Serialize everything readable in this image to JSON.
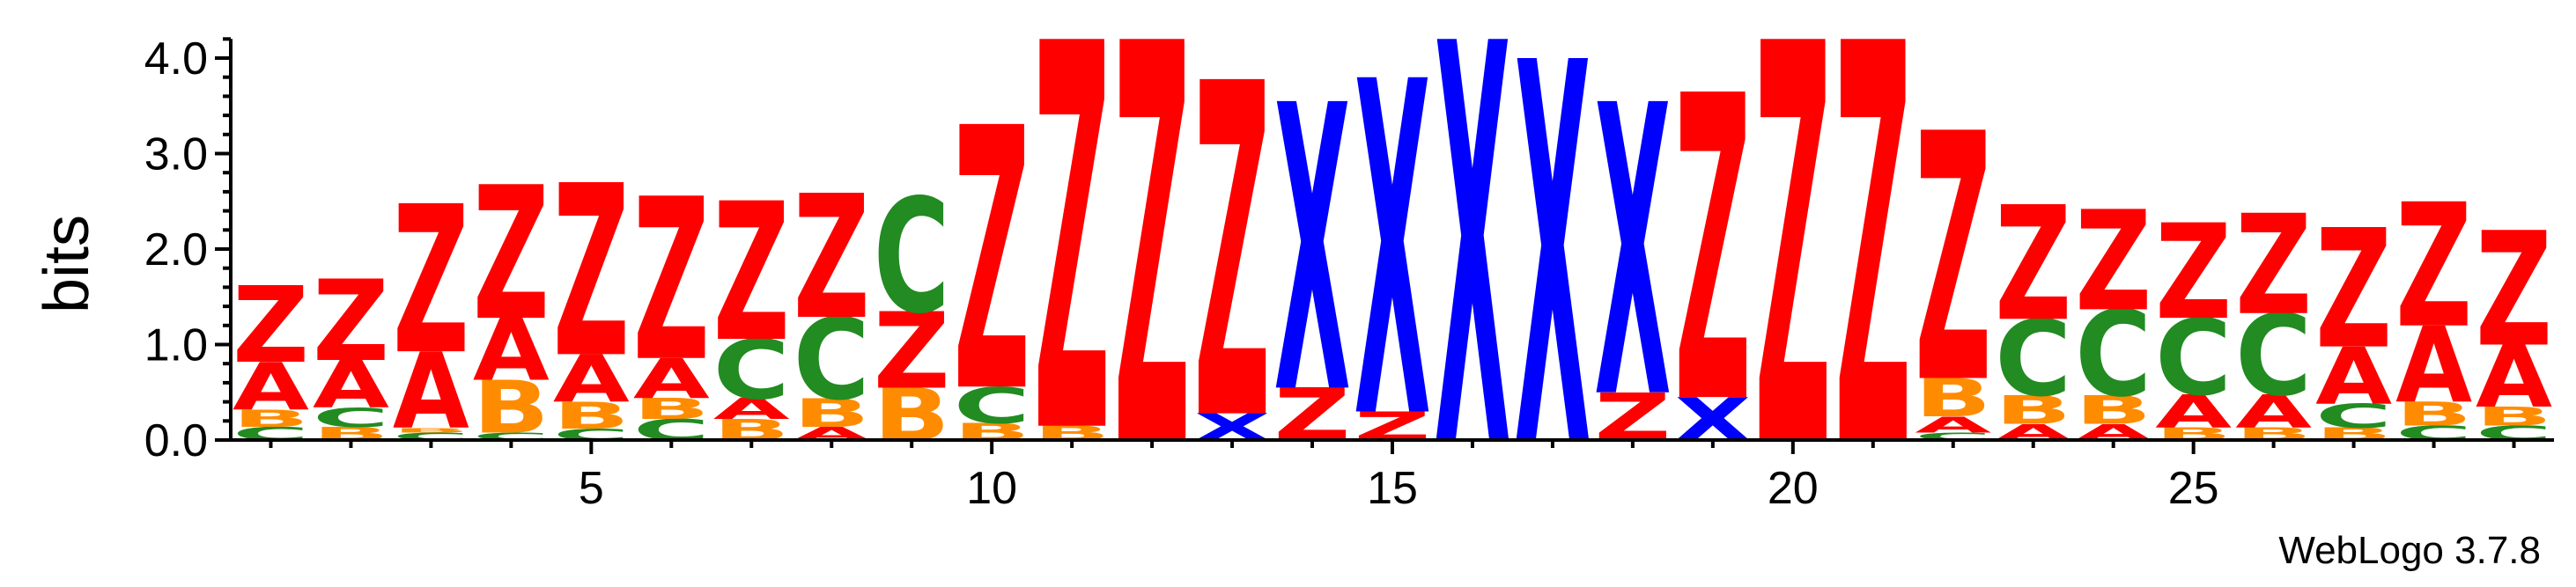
{
  "chart_data": {
    "type": "sequence-logo",
    "ylabel": "bits",
    "ylim": [
      0,
      4.2
    ],
    "yticks": [
      0.0,
      1.0,
      2.0,
      3.0,
      4.0
    ],
    "ytick_labels": [
      "0.0",
      "1.0",
      "2.0",
      "3.0",
      "4.0"
    ],
    "xlim": [
      0.5,
      29.5
    ],
    "xticks": [
      5,
      10,
      15,
      20,
      25
    ],
    "xtick_labels": [
      "5",
      "10",
      "15",
      "20",
      "25"
    ],
    "footer": "WebLogo 3.7.8",
    "colors": {
      "Z": "#ff0000",
      "X": "#0000ff",
      "A": "#ff0000",
      "B": "#ff8c00",
      "C": "#228b22"
    },
    "positions": [
      {
        "pos": 1,
        "stack": [
          [
            "C",
            0.14
          ],
          [
            "B",
            0.18
          ],
          [
            "A",
            0.5
          ],
          [
            "Z",
            0.8
          ]
        ]
      },
      {
        "pos": 2,
        "stack": [
          [
            "B",
            0.14
          ],
          [
            "C",
            0.2
          ],
          [
            "A",
            0.5
          ],
          [
            "Z",
            0.85
          ]
        ]
      },
      {
        "pos": 3,
        "stack": [
          [
            "C",
            0.08
          ],
          [
            "B",
            0.05
          ],
          [
            "A",
            0.8
          ],
          [
            "Z",
            1.55
          ]
        ]
      },
      {
        "pos": 4,
        "stack": [
          [
            "C",
            0.08
          ],
          [
            "B",
            0.55
          ],
          [
            "A",
            0.65
          ],
          [
            "Z",
            1.4
          ]
        ]
      },
      {
        "pos": 5,
        "stack": [
          [
            "C",
            0.12
          ],
          [
            "B",
            0.28
          ],
          [
            "A",
            0.5
          ],
          [
            "Z",
            1.8
          ]
        ]
      },
      {
        "pos": 6,
        "stack": [
          [
            "C",
            0.22
          ],
          [
            "B",
            0.22
          ],
          [
            "A",
            0.42
          ],
          [
            "Z",
            1.7
          ]
        ]
      },
      {
        "pos": 7,
        "stack": [
          [
            "B",
            0.22
          ],
          [
            "A",
            0.22
          ],
          [
            "C",
            0.62
          ],
          [
            "Z",
            1.45
          ]
        ]
      },
      {
        "pos": 8,
        "stack": [
          [
            "A",
            0.14
          ],
          [
            "B",
            0.3
          ],
          [
            "C",
            0.85
          ],
          [
            "Z",
            1.3
          ]
        ]
      },
      {
        "pos": 9,
        "stack": [
          [
            "B",
            0.55
          ],
          [
            "Z",
            0.8
          ],
          [
            "C",
            1.2
          ]
        ]
      },
      {
        "pos": 10,
        "stack": [
          [
            "B",
            0.18
          ],
          [
            "C",
            0.38
          ],
          [
            "Z",
            2.75
          ]
        ]
      },
      {
        "pos": 11,
        "stack": [
          [
            "B",
            0.15
          ],
          [
            "Z",
            4.05
          ]
        ]
      },
      {
        "pos": 12,
        "stack": [
          [
            "Z",
            4.2
          ]
        ]
      },
      {
        "pos": 13,
        "stack": [
          [
            "X",
            0.28
          ],
          [
            "Z",
            3.5
          ]
        ]
      },
      {
        "pos": 14,
        "stack": [
          [
            "Z",
            0.55
          ],
          [
            "X",
            3.0
          ]
        ]
      },
      {
        "pos": 15,
        "stack": [
          [
            "Z",
            0.3
          ],
          [
            "X",
            3.5
          ]
        ]
      },
      {
        "pos": 16,
        "stack": [
          [
            "X",
            4.2
          ]
        ]
      },
      {
        "pos": 17,
        "stack": [
          [
            "X",
            4.0
          ]
        ]
      },
      {
        "pos": 18,
        "stack": [
          [
            "Z",
            0.5
          ],
          [
            "X",
            3.05
          ]
        ]
      },
      {
        "pos": 19,
        "stack": [
          [
            "X",
            0.45
          ],
          [
            "Z",
            3.2
          ]
        ]
      },
      {
        "pos": 20,
        "stack": [
          [
            "Z",
            4.2
          ]
        ]
      },
      {
        "pos": 21,
        "stack": [
          [
            "Z",
            4.2
          ]
        ]
      },
      {
        "pos": 22,
        "stack": [
          [
            "C",
            0.08
          ],
          [
            "A",
            0.17
          ],
          [
            "B",
            0.4
          ],
          [
            "Z",
            2.6
          ]
        ]
      },
      {
        "pos": 23,
        "stack": [
          [
            "A",
            0.17
          ],
          [
            "B",
            0.3
          ],
          [
            "C",
            0.8
          ],
          [
            "Z",
            1.2
          ]
        ]
      },
      {
        "pos": 24,
        "stack": [
          [
            "A",
            0.17
          ],
          [
            "B",
            0.3
          ],
          [
            "C",
            0.9
          ],
          [
            "Z",
            1.05
          ]
        ]
      },
      {
        "pos": 25,
        "stack": [
          [
            "B",
            0.13
          ],
          [
            "A",
            0.35
          ],
          [
            "C",
            0.8
          ],
          [
            "Z",
            1.0
          ]
        ]
      },
      {
        "pos": 26,
        "stack": [
          [
            "B",
            0.13
          ],
          [
            "A",
            0.35
          ],
          [
            "C",
            0.85
          ],
          [
            "Z",
            1.05
          ]
        ]
      },
      {
        "pos": 27,
        "stack": [
          [
            "B",
            0.13
          ],
          [
            "C",
            0.25
          ],
          [
            "A",
            0.6
          ],
          [
            "Z",
            1.25
          ]
        ]
      },
      {
        "pos": 28,
        "stack": [
          [
            "C",
            0.15
          ],
          [
            "B",
            0.25
          ],
          [
            "A",
            0.8
          ],
          [
            "Z",
            1.3
          ]
        ]
      },
      {
        "pos": 29,
        "stack": [
          [
            "C",
            0.15
          ],
          [
            "B",
            0.2
          ],
          [
            "A",
            0.65
          ],
          [
            "Z",
            1.2
          ]
        ]
      }
    ]
  }
}
